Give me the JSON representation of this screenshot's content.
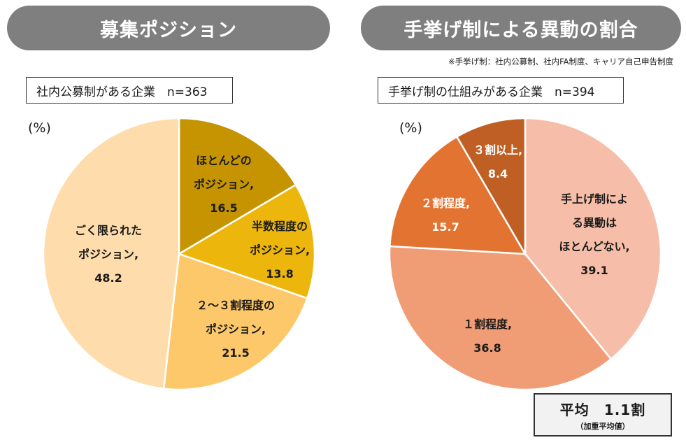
{
  "left": {
    "header": "募集ポジション",
    "sample": "社内公募制がある企業　n=363",
    "unit": "(%)"
  },
  "right": {
    "header": "手挙げ制による異動の割合",
    "footnote": "※手挙げ制：社内公募制、社内FA制度、キャリア自己申告制度",
    "sample": "手挙げ制の仕組みがある企業　n=394",
    "unit": "(%)",
    "average": {
      "main": "平均　1.1割",
      "sub": "（加重平均値）"
    }
  },
  "chart_data": [
    {
      "type": "pie",
      "title": "募集ポジション",
      "slices": [
        {
          "lines": [
            "ほとんどの",
            "ポジション,"
          ],
          "value": 16.5,
          "value_label": "16.5",
          "color": "#c59400"
        },
        {
          "lines": [
            "半数程度の",
            "ポジション,"
          ],
          "value": 13.8,
          "value_label": "13.8",
          "color": "#ecb60c"
        },
        {
          "lines": [
            "２～３割程度の",
            "ポジション,"
          ],
          "value": 21.5,
          "value_label": "21.5",
          "color": "#fdc869"
        },
        {
          "lines": [
            "ごく限られた",
            "ポジション,"
          ],
          "value": 48.2,
          "value_label": "48.2",
          "color": "#fedcab"
        }
      ]
    },
    {
      "type": "pie",
      "title": "手挙げ制による異動の割合",
      "slices": [
        {
          "lines": [
            "手上げ制によ",
            "る異動は",
            "ほとんどない,"
          ],
          "value": 39.1,
          "value_label": "39.1",
          "color": "#f6bea8"
        },
        {
          "lines": [
            "１割程度,"
          ],
          "value": 36.8,
          "value_label": "36.8",
          "color": "#f09c75"
        },
        {
          "lines": [
            "２割程度,"
          ],
          "value": 15.7,
          "value_label": "15.7",
          "color": "#e27330",
          "light": true
        },
        {
          "lines": [
            "３割以上,"
          ],
          "value": 8.4,
          "value_label": "8.4",
          "color": "#c05f24",
          "light": true
        }
      ]
    }
  ]
}
